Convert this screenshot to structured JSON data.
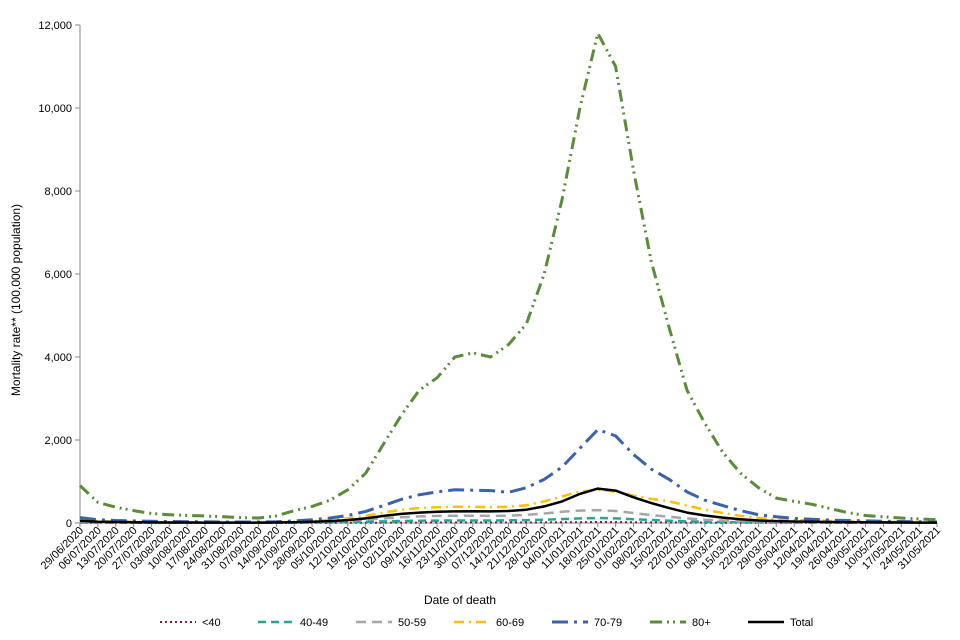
{
  "chart_data": {
    "type": "line",
    "y_label": "Mortality rate** (100,000 population)",
    "x_label": "Date of death",
    "categories": [
      "29/06/2020",
      "06/07/2020",
      "13/07/2020",
      "20/07/2020",
      "27/07/2020",
      "03/08/2020",
      "10/08/2020",
      "17/08/2020",
      "24/08/2020",
      "31/08/2020",
      "07/09/2020",
      "14/09/2020",
      "21/09/2020",
      "28/09/2020",
      "05/10/2020",
      "12/10/2020",
      "19/10/2020",
      "26/10/2020",
      "02/11/2020",
      "09/11/2020",
      "16/11/2020",
      "23/11/2020",
      "30/11/2020",
      "07/12/2020",
      "14/12/2020",
      "21/12/2020",
      "28/12/2020",
      "04/01/2021",
      "11/01/2021",
      "18/01/2021",
      "25/01/2021",
      "01/02/2021",
      "08/02/2021",
      "15/02/2021",
      "22/02/2021",
      "01/03/2021",
      "08/03/2021",
      "15/03/2021",
      "22/03/2021",
      "29/03/2021",
      "05/04/2021",
      "12/04/2021",
      "19/04/2021",
      "26/04/2021",
      "03/05/2021",
      "10/05/2021",
      "17/05/2021",
      "24/05/2021",
      "31/05/2021"
    ],
    "series": [
      {
        "name": "<40",
        "color": "#7b1f45",
        "values": [
          5,
          4,
          3,
          3,
          3,
          2,
          2,
          2,
          2,
          2,
          2,
          2,
          3,
          3,
          4,
          5,
          6,
          8,
          9,
          10,
          11,
          11,
          11,
          11,
          11,
          12,
          14,
          17,
          20,
          24,
          22,
          18,
          14,
          11,
          9,
          7,
          6,
          5,
          4,
          4,
          3,
          3,
          3,
          3,
          2,
          2,
          2,
          2,
          2
        ]
      },
      {
        "name": "40-49",
        "color": "#1fa89a",
        "values": [
          15,
          10,
          8,
          6,
          5,
          5,
          4,
          4,
          4,
          4,
          4,
          5,
          7,
          10,
          14,
          20,
          28,
          38,
          48,
          55,
          58,
          60,
          60,
          60,
          62,
          68,
          80,
          95,
          110,
          120,
          112,
          92,
          72,
          56,
          42,
          32,
          24,
          18,
          14,
          11,
          9,
          8,
          7,
          6,
          5,
          5,
          4,
          4,
          4
        ]
      },
      {
        "name": "50-59",
        "color": "#a6a6a6",
        "values": [
          35,
          22,
          18,
          15,
          12,
          10,
          10,
          9,
          9,
          8,
          8,
          10,
          16,
          25,
          35,
          55,
          80,
          110,
          140,
          160,
          170,
          175,
          175,
          170,
          175,
          195,
          230,
          270,
          300,
          310,
          290,
          240,
          190,
          150,
          110,
          80,
          60,
          45,
          35,
          28,
          22,
          20,
          17,
          15,
          13,
          12,
          10,
          9,
          8
        ]
      },
      {
        "name": "60-69",
        "color": "#ffc000",
        "values": [
          70,
          45,
          35,
          28,
          24,
          20,
          18,
          17,
          16,
          15,
          15,
          18,
          30,
          45,
          70,
          110,
          170,
          250,
          320,
          360,
          380,
          390,
          390,
          380,
          390,
          430,
          520,
          640,
          760,
          800,
          760,
          660,
          580,
          520,
          420,
          320,
          240,
          170,
          120,
          90,
          70,
          60,
          50,
          42,
          36,
          30,
          26,
          22,
          20
        ]
      },
      {
        "name": "70-79",
        "color": "#3a63ad",
        "values": [
          130,
          80,
          60,
          50,
          40,
          35,
          30,
          30,
          25,
          25,
          25,
          30,
          50,
          80,
          120,
          180,
          280,
          420,
          570,
          680,
          750,
          800,
          790,
          780,
          740,
          850,
          1050,
          1350,
          1800,
          2250,
          2100,
          1650,
          1300,
          1050,
          750,
          550,
          420,
          300,
          200,
          150,
          110,
          90,
          70,
          60,
          50,
          40,
          35,
          30,
          25
        ]
      },
      {
        "name": "80+",
        "color": "#5b8c3a",
        "values": [
          900,
          500,
          380,
          300,
          230,
          200,
          180,
          170,
          150,
          130,
          120,
          170,
          300,
          400,
          550,
          800,
          1200,
          1900,
          2600,
          3200,
          3500,
          4000,
          4100,
          4000,
          4300,
          4800,
          6000,
          7800,
          10000,
          11800,
          11000,
          8500,
          6300,
          4700,
          3200,
          2400,
          1700,
          1200,
          850,
          600,
          520,
          450,
          350,
          250,
          180,
          150,
          120,
          100,
          80
        ]
      },
      {
        "name": "Total",
        "color": "#000000",
        "values": [
          50,
          30,
          25,
          20,
          15,
          12,
          12,
          10,
          10,
          10,
          10,
          12,
          20,
          30,
          45,
          70,
          110,
          170,
          220,
          250,
          270,
          280,
          285,
          280,
          290,
          320,
          400,
          520,
          700,
          830,
          780,
          620,
          480,
          360,
          250,
          180,
          130,
          90,
          60,
          45,
          35,
          30,
          25,
          20,
          18,
          15,
          12,
          10,
          10
        ]
      }
    ],
    "ylim": [
      0,
      12000
    ],
    "yticks": [
      0,
      {
        "value": 2000,
        "label": "2,000"
      },
      {
        "value": 4000,
        "label": "4,000"
      },
      {
        "value": 6000,
        "label": "6,000"
      },
      {
        "value": 8000,
        "label": "8,000"
      },
      {
        "value": 10000,
        "label": "10,000"
      },
      {
        "value": 12000,
        "label": "12,000"
      }
    ],
    "legend": "bottom"
  }
}
